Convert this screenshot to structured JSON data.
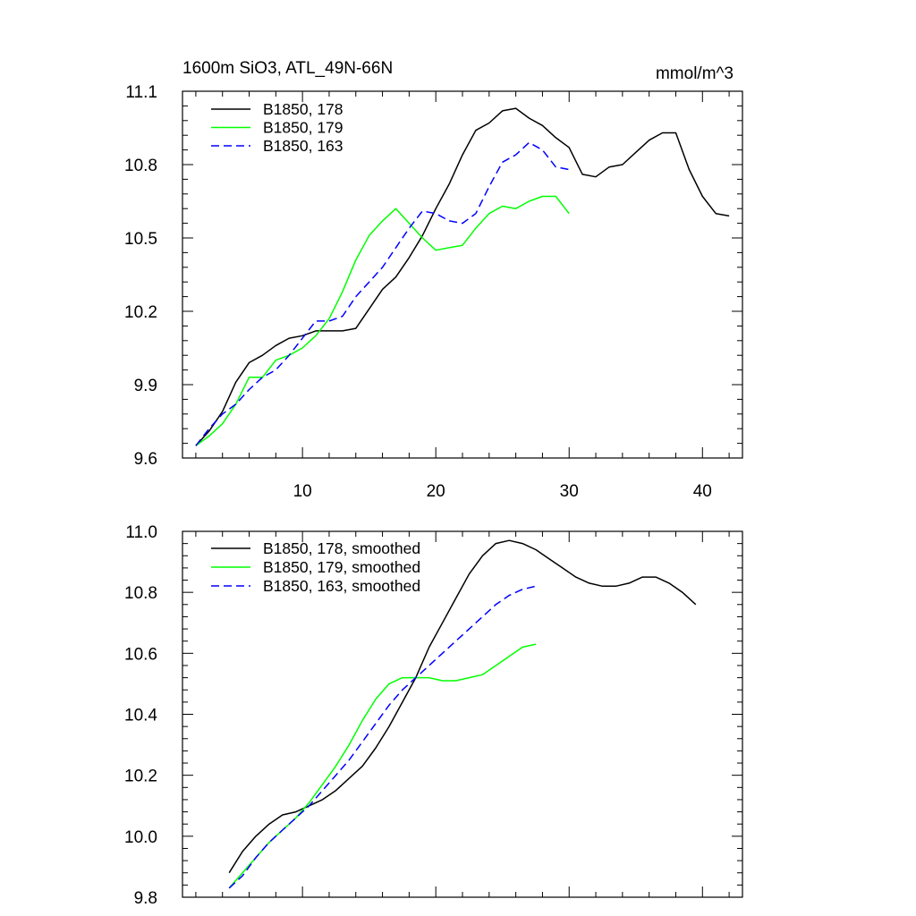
{
  "chart_data": [
    {
      "type": "line",
      "title": "1600m SiO3, ATL_49N-66N",
      "units": "mmol/m^3",
      "xlim": [
        1,
        43
      ],
      "ylim": [
        9.6,
        11.1
      ],
      "x_ticks": [
        10,
        20,
        30,
        40
      ],
      "x_tick_labels": [
        "10",
        "20",
        "30",
        "40"
      ],
      "y_ticks": [
        9.6,
        9.9,
        10.2,
        10.5,
        10.8,
        11.1
      ],
      "y_tick_labels": [
        "9.6",
        "9.9",
        "10.2",
        "10.5",
        "10.8",
        "11.1"
      ],
      "grid": false,
      "legend_position": "top-left",
      "series": [
        {
          "name": "B1850, 178",
          "color": "#000000",
          "dash": "solid",
          "x": [
            2,
            3,
            4,
            5,
            6,
            7,
            8,
            9,
            10,
            11,
            12,
            13,
            14,
            15,
            16,
            17,
            18,
            19,
            20,
            21,
            22,
            23,
            24,
            25,
            26,
            27,
            28,
            29,
            30,
            31,
            32,
            33,
            34,
            35,
            36,
            37,
            38,
            39,
            40,
            41,
            42
          ],
          "y": [
            9.65,
            9.71,
            9.79,
            9.91,
            9.99,
            10.02,
            10.06,
            10.09,
            10.1,
            10.12,
            10.12,
            10.12,
            10.13,
            10.21,
            10.29,
            10.34,
            10.42,
            10.51,
            10.62,
            10.72,
            10.84,
            10.94,
            10.97,
            11.02,
            11.03,
            10.99,
            10.96,
            10.91,
            10.87,
            10.76,
            10.75,
            10.79,
            10.8,
            10.85,
            10.9,
            10.93,
            10.93,
            10.78,
            10.67,
            10.6,
            10.59
          ]
        },
        {
          "name": "B1850, 179",
          "color": "#00ff00",
          "dash": "solid",
          "x": [
            2,
            3,
            4,
            5,
            6,
            7,
            8,
            9,
            10,
            11,
            12,
            13,
            14,
            15,
            16,
            17,
            18,
            19,
            20,
            21,
            22,
            23,
            24,
            25,
            26,
            27,
            28,
            29,
            30
          ],
          "y": [
            9.65,
            9.69,
            9.74,
            9.82,
            9.93,
            9.93,
            10.0,
            10.02,
            10.05,
            10.1,
            10.17,
            10.28,
            10.41,
            10.51,
            10.57,
            10.62,
            10.56,
            10.5,
            10.45,
            10.46,
            10.47,
            10.54,
            10.6,
            10.63,
            10.62,
            10.65,
            10.67,
            10.67,
            10.6
          ]
        },
        {
          "name": "B1850, 163",
          "color": "#0000ff",
          "dash": "dashed",
          "x": [
            2,
            3,
            4,
            5,
            6,
            7,
            8,
            9,
            10,
            11,
            12,
            13,
            14,
            15,
            16,
            17,
            18,
            19,
            20,
            21,
            22,
            23,
            24,
            25,
            26,
            27,
            28,
            29,
            30
          ],
          "y": [
            9.65,
            9.72,
            9.78,
            9.82,
            9.88,
            9.93,
            9.96,
            10.02,
            10.09,
            10.16,
            10.16,
            10.18,
            10.26,
            10.32,
            10.38,
            10.46,
            10.54,
            10.61,
            10.6,
            10.57,
            10.56,
            10.6,
            10.71,
            10.81,
            10.84,
            10.89,
            10.86,
            10.79,
            10.78
          ]
        }
      ]
    },
    {
      "type": "line",
      "title": "",
      "xlim": [
        1,
        43
      ],
      "ylim": [
        9.8,
        11.0
      ],
      "x_ticks": [
        10,
        20,
        30,
        40
      ],
      "x_tick_labels": [],
      "y_ticks": [
        9.8,
        10.0,
        10.2,
        10.4,
        10.6,
        10.8,
        11.0
      ],
      "y_tick_labels": [
        "9.8",
        "10.0",
        "10.2",
        "10.4",
        "10.6",
        "10.8",
        "11.0"
      ],
      "grid": false,
      "legend_position": "top-left",
      "series": [
        {
          "name": "B1850, 178, smoothed",
          "color": "#000000",
          "dash": "solid",
          "x": [
            4.5,
            5.5,
            6.5,
            7.5,
            8.5,
            9.5,
            10.5,
            11.5,
            12.5,
            13.5,
            14.5,
            15.5,
            16.5,
            17.5,
            18.5,
            19.5,
            20.5,
            21.5,
            22.5,
            23.5,
            24.5,
            25.5,
            26.5,
            27.5,
            28.5,
            29.5,
            30.5,
            31.5,
            32.5,
            33.5,
            34.5,
            35.5,
            36.5,
            37.5,
            38.5,
            39.5
          ],
          "y": [
            9.88,
            9.95,
            10.0,
            10.04,
            10.07,
            10.08,
            10.1,
            10.12,
            10.15,
            10.19,
            10.23,
            10.29,
            10.36,
            10.44,
            10.52,
            10.62,
            10.7,
            10.78,
            10.86,
            10.92,
            10.96,
            10.97,
            10.96,
            10.94,
            10.91,
            10.88,
            10.85,
            10.83,
            10.82,
            10.82,
            10.83,
            10.85,
            10.85,
            10.83,
            10.8,
            10.76
          ]
        },
        {
          "name": "B1850, 179, smoothed",
          "color": "#00ff00",
          "dash": "solid",
          "x": [
            4.5,
            5.5,
            6.5,
            7.5,
            8.5,
            9.5,
            10.5,
            11.5,
            12.5,
            13.5,
            14.5,
            15.5,
            16.5,
            17.5,
            18.5,
            19.5,
            20.5,
            21.5,
            22.5,
            23.5,
            24.5,
            25.5,
            26.5,
            27.5
          ],
          "y": [
            9.83,
            9.88,
            9.93,
            9.98,
            10.02,
            10.06,
            10.11,
            10.17,
            10.23,
            10.3,
            10.38,
            10.45,
            10.5,
            10.52,
            10.52,
            10.52,
            10.51,
            10.51,
            10.52,
            10.53,
            10.56,
            10.59,
            10.62,
            10.63
          ]
        },
        {
          "name": "B1850, 163, smoothed",
          "color": "#0000ff",
          "dash": "dashed",
          "x": [
            4.5,
            5.5,
            6.5,
            7.5,
            8.5,
            9.5,
            10.5,
            11.5,
            12.5,
            13.5,
            14.5,
            15.5,
            16.5,
            17.5,
            18.5,
            19.5,
            20.5,
            21.5,
            22.5,
            23.5,
            24.5,
            25.5,
            26.5,
            27.5
          ],
          "y": [
            9.83,
            9.87,
            9.93,
            9.98,
            10.02,
            10.06,
            10.1,
            10.15,
            10.2,
            10.25,
            10.31,
            10.37,
            10.43,
            10.48,
            10.52,
            10.56,
            10.6,
            10.64,
            10.68,
            10.72,
            10.76,
            10.79,
            10.81,
            10.82
          ]
        }
      ]
    }
  ]
}
